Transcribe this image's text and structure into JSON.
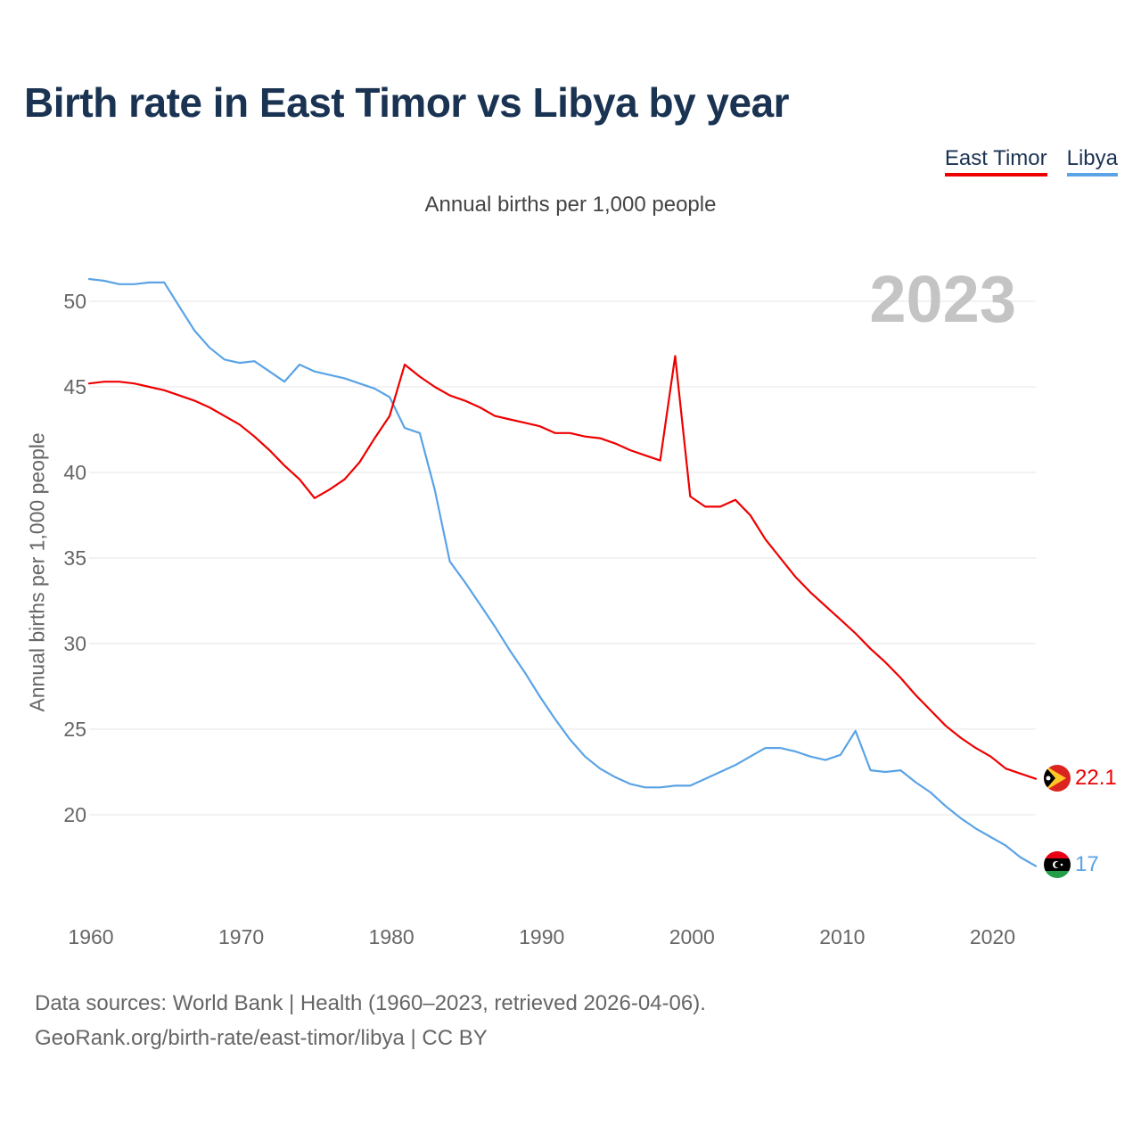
{
  "title": "Birth rate in East Timor vs Libya by year",
  "legend": {
    "east_timor": "East Timor",
    "libya": "Libya"
  },
  "colors": {
    "east_timor": "#ee0000",
    "libya": "#5aa3e6",
    "title": "#1a3352",
    "year_watermark": "#c4c4c4",
    "grid": "#e6e6e6"
  },
  "footer": {
    "sources": "Data sources: World Bank | Health (1960–2023, retrieved 2026-04-06).",
    "credit": "GeoRank.org/birth-rate/east-timor/libya | CC BY"
  },
  "chart_data": {
    "type": "line",
    "title": "Birth rate in East Timor vs Libya by year",
    "subtitle": "Annual births per 1,000 people",
    "ylabel": "Annual births per 1,000 people",
    "xlabel": "",
    "year_label": "2023",
    "xlim": [
      1960,
      2023
    ],
    "ylim": [
      15,
      52.5
    ],
    "x_ticks": [
      1960,
      1970,
      1980,
      1990,
      2000,
      2010,
      2020
    ],
    "y_ticks": [
      20,
      25,
      30,
      35,
      40,
      45,
      50
    ],
    "grid": true,
    "legend_position": "top-right",
    "x": [
      1960,
      1961,
      1962,
      1963,
      1964,
      1965,
      1966,
      1967,
      1968,
      1969,
      1970,
      1971,
      1972,
      1973,
      1974,
      1975,
      1976,
      1977,
      1978,
      1979,
      1980,
      1981,
      1982,
      1983,
      1984,
      1985,
      1986,
      1987,
      1988,
      1989,
      1990,
      1991,
      1992,
      1993,
      1994,
      1995,
      1996,
      1997,
      1998,
      1999,
      2000,
      2001,
      2002,
      2003,
      2004,
      2005,
      2006,
      2007,
      2008,
      2009,
      2010,
      2011,
      2012,
      2013,
      2014,
      2015,
      2016,
      2017,
      2018,
      2019,
      2020,
      2021,
      2022,
      2023
    ],
    "series": [
      {
        "name": "East Timor",
        "color": "#ee0000",
        "end_label": "22.1",
        "values": [
          45.2,
          45.3,
          45.3,
          45.2,
          45.0,
          44.8,
          44.5,
          44.2,
          43.8,
          43.3,
          42.8,
          42.1,
          41.3,
          40.4,
          39.6,
          38.5,
          39.0,
          39.6,
          40.6,
          42.0,
          43.3,
          46.3,
          45.6,
          45.0,
          44.5,
          44.2,
          43.8,
          43.3,
          43.1,
          42.9,
          42.7,
          42.3,
          42.3,
          42.1,
          42.0,
          41.7,
          41.3,
          41.0,
          40.7,
          46.8,
          38.6,
          38.0,
          38.0,
          38.4,
          37.5,
          36.1,
          35.0,
          33.9,
          33.0,
          32.2,
          31.4,
          30.6,
          29.7,
          28.9,
          28.0,
          27.0,
          26.1,
          25.2,
          24.5,
          23.9,
          23.4,
          22.7,
          22.4,
          22.1
        ]
      },
      {
        "name": "Libya",
        "color": "#5aa3e6",
        "end_label": "17",
        "values": [
          51.3,
          51.2,
          51.0,
          51.0,
          51.1,
          51.1,
          49.7,
          48.3,
          47.3,
          46.6,
          46.4,
          46.5,
          45.9,
          45.3,
          46.3,
          45.9,
          45.7,
          45.5,
          45.2,
          44.9,
          44.4,
          42.6,
          42.3,
          39.0,
          34.8,
          33.6,
          32.3,
          31.0,
          29.6,
          28.3,
          26.9,
          25.6,
          24.4,
          23.4,
          22.7,
          22.2,
          21.8,
          21.6,
          21.6,
          21.7,
          21.7,
          22.1,
          22.5,
          22.9,
          23.4,
          23.9,
          23.9,
          23.7,
          23.4,
          23.2,
          23.5,
          24.9,
          22.6,
          22.5,
          22.6,
          21.9,
          21.3,
          20.5,
          19.8,
          19.2,
          18.7,
          18.2,
          17.5,
          17.0
        ]
      }
    ]
  }
}
